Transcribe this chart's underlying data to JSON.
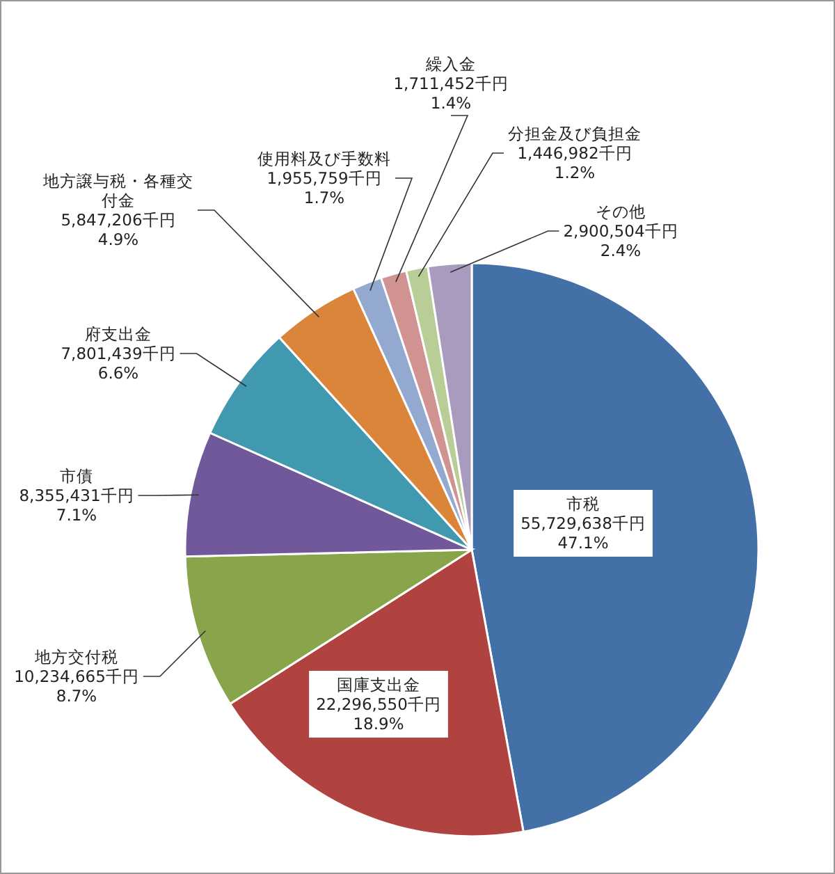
{
  "chart_data": {
    "type": "pie",
    "categories": [
      "市税",
      "国庫支出金",
      "地方交付税",
      "市債",
      "府支出金",
      "地方譲与税・各種交付金",
      "使用料及び手数料",
      "繰入金",
      "分担金及び負担金",
      "その他"
    ],
    "values": [
      55729638,
      22296550,
      10234665,
      8355431,
      7801439,
      5847206,
      1955759,
      1711452,
      1446982,
      2900504
    ],
    "value_labels": [
      "55,729,638千円\n47.1%",
      "22,296,550千円\n18.9%",
      "10,234,665千円\n8.7%",
      "8,355,431千円\n7.1%",
      "7,801,439千円\n6.6%",
      "5,847,206千円\n4.9%",
      "1,955,759千円\n1.7%",
      "1,711,452千円\n1.4%",
      "1,446,982千円\n1.2%",
      "2,900,504千円\n2.4%"
    ],
    "colors": [
      "#4470a8",
      "#b0433f",
      "#89a54b",
      "#71589a",
      "#4199b0",
      "#db853b",
      "#93a9cf",
      "#d09392",
      "#b9cd96",
      "#a99bbd"
    ]
  }
}
